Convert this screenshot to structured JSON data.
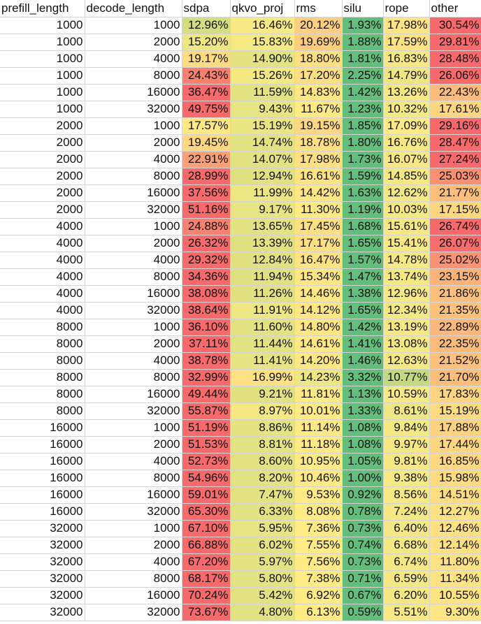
{
  "headers": [
    "prefill_length",
    "decode_length",
    "sdpa",
    "qkvo_proj",
    "rms",
    "silu",
    "rope",
    "other"
  ],
  "rows": [
    [
      "1000",
      "1000",
      "12.96%",
      "16.46%",
      "20.12%",
      "1.93%",
      "17.98%",
      "30.54%"
    ],
    [
      "1000",
      "2000",
      "15.20%",
      "15.83%",
      "19.69%",
      "1.88%",
      "17.59%",
      "29.81%"
    ],
    [
      "1000",
      "4000",
      "19.17%",
      "14.90%",
      "18.80%",
      "1.81%",
      "16.83%",
      "28.48%"
    ],
    [
      "1000",
      "8000",
      "24.43%",
      "15.26%",
      "17.20%",
      "2.25%",
      "14.79%",
      "26.06%"
    ],
    [
      "1000",
      "16000",
      "36.47%",
      "11.59%",
      "14.83%",
      "1.42%",
      "13.26%",
      "22.43%"
    ],
    [
      "1000",
      "32000",
      "49.75%",
      "9.43%",
      "11.67%",
      "1.23%",
      "10.32%",
      "17.61%"
    ],
    [
      "2000",
      "1000",
      "17.57%",
      "15.19%",
      "19.15%",
      "1.85%",
      "17.09%",
      "29.16%"
    ],
    [
      "2000",
      "2000",
      "19.45%",
      "14.74%",
      "18.78%",
      "1.80%",
      "16.76%",
      "28.47%"
    ],
    [
      "2000",
      "4000",
      "22.91%",
      "14.07%",
      "17.98%",
      "1.73%",
      "16.07%",
      "27.24%"
    ],
    [
      "2000",
      "8000",
      "28.99%",
      "12.94%",
      "16.61%",
      "1.59%",
      "14.85%",
      "25.03%"
    ],
    [
      "2000",
      "16000",
      "37.56%",
      "11.99%",
      "14.42%",
      "1.63%",
      "12.62%",
      "21.77%"
    ],
    [
      "2000",
      "32000",
      "51.16%",
      "9.17%",
      "11.30%",
      "1.19%",
      "10.03%",
      "17.15%"
    ],
    [
      "4000",
      "1000",
      "24.88%",
      "13.65%",
      "17.45%",
      "1.68%",
      "15.61%",
      "26.74%"
    ],
    [
      "4000",
      "2000",
      "26.32%",
      "13.39%",
      "17.17%",
      "1.65%",
      "15.41%",
      "26.07%"
    ],
    [
      "4000",
      "4000",
      "29.32%",
      "12.84%",
      "16.47%",
      "1.57%",
      "14.78%",
      "25.02%"
    ],
    [
      "4000",
      "8000",
      "34.36%",
      "11.94%",
      "15.34%",
      "1.47%",
      "13.74%",
      "23.15%"
    ],
    [
      "4000",
      "16000",
      "38.08%",
      "11.26%",
      "14.46%",
      "1.38%",
      "12.96%",
      "21.86%"
    ],
    [
      "4000",
      "32000",
      "38.64%",
      "11.91%",
      "14.12%",
      "1.65%",
      "12.34%",
      "21.35%"
    ],
    [
      "8000",
      "1000",
      "36.10%",
      "11.60%",
      "14.80%",
      "1.42%",
      "13.19%",
      "22.89%"
    ],
    [
      "8000",
      "2000",
      "37.11%",
      "11.44%",
      "14.61%",
      "1.41%",
      "13.08%",
      "22.35%"
    ],
    [
      "8000",
      "4000",
      "38.78%",
      "11.41%",
      "14.20%",
      "1.46%",
      "12.63%",
      "21.52%"
    ],
    [
      "8000",
      "8000",
      "32.99%",
      "16.99%",
      "14.23%",
      "3.32%",
      "10.77%",
      "21.70%"
    ],
    [
      "8000",
      "16000",
      "49.44%",
      "9.21%",
      "11.81%",
      "1.13%",
      "10.59%",
      "17.83%"
    ],
    [
      "8000",
      "32000",
      "55.87%",
      "8.97%",
      "10.01%",
      "1.33%",
      "8.61%",
      "15.19%"
    ],
    [
      "16000",
      "1000",
      "51.19%",
      "8.86%",
      "11.14%",
      "1.08%",
      "9.84%",
      "17.88%"
    ],
    [
      "16000",
      "2000",
      "51.53%",
      "8.81%",
      "11.18%",
      "1.08%",
      "9.97%",
      "17.44%"
    ],
    [
      "16000",
      "4000",
      "52.73%",
      "8.60%",
      "10.95%",
      "1.05%",
      "9.81%",
      "16.85%"
    ],
    [
      "16000",
      "8000",
      "54.96%",
      "8.20%",
      "10.46%",
      "1.00%",
      "9.38%",
      "15.98%"
    ],
    [
      "16000",
      "16000",
      "59.01%",
      "7.47%",
      "9.53%",
      "0.92%",
      "8.56%",
      "14.51%"
    ],
    [
      "16000",
      "32000",
      "65.30%",
      "6.33%",
      "8.08%",
      "0.78%",
      "7.24%",
      "12.27%"
    ],
    [
      "32000",
      "1000",
      "67.10%",
      "5.95%",
      "7.36%",
      "0.73%",
      "6.40%",
      "12.46%"
    ],
    [
      "32000",
      "2000",
      "66.88%",
      "6.02%",
      "7.55%",
      "0.74%",
      "6.68%",
      "12.14%"
    ],
    [
      "32000",
      "4000",
      "67.20%",
      "5.97%",
      "7.56%",
      "0.73%",
      "6.74%",
      "11.80%"
    ],
    [
      "32000",
      "8000",
      "68.17%",
      "5.80%",
      "7.38%",
      "0.71%",
      "6.59%",
      "11.34%"
    ],
    [
      "32000",
      "16000",
      "70.24%",
      "5.42%",
      "6.92%",
      "0.67%",
      "6.20%",
      "10.55%"
    ],
    [
      "32000",
      "32000",
      "73.67%",
      "4.80%",
      "6.13%",
      "0.59%",
      "5.51%",
      "9.30%"
    ]
  ],
  "color_scale": {
    "low": "#63BE7B",
    "mid": "#FFEB84",
    "high": "#F8696B"
  }
}
